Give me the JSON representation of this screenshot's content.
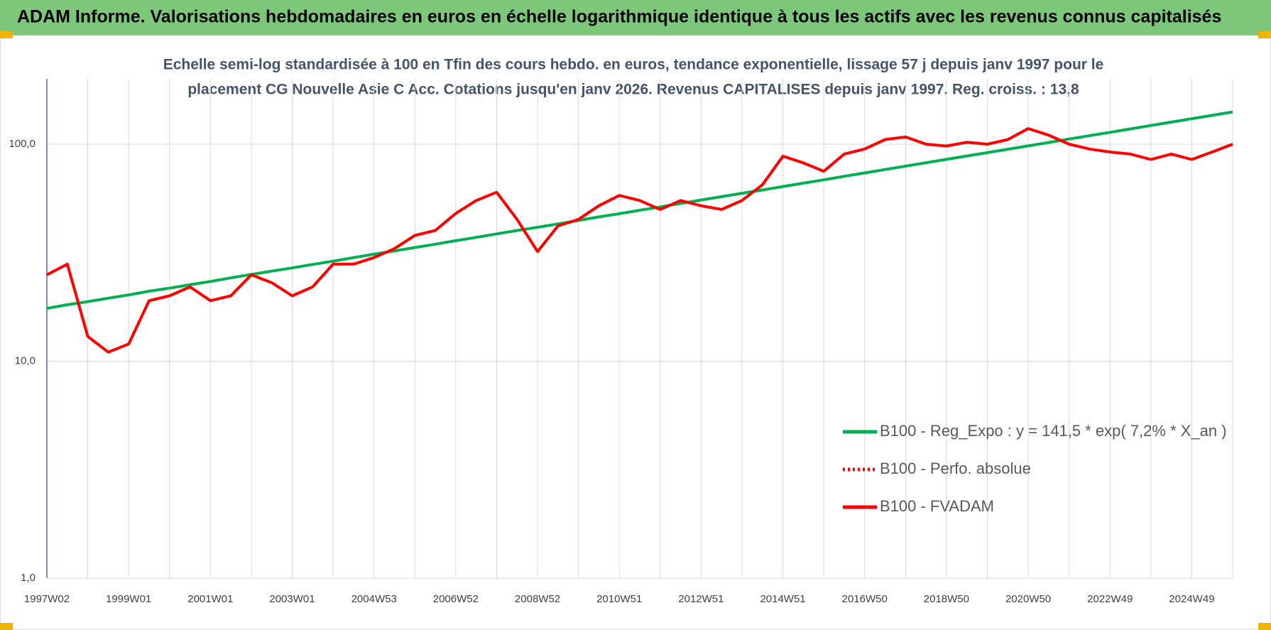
{
  "chart_data": {
    "type": "line",
    "title": "ADAM Informe. Valorisations hebdomadaires en euros en échelle logarithmique identique à tous les actifs avec les revenus connus capitalisés",
    "subtitle": [
      "Echelle semi-log standardisée à 100 en Tfin des cours hebdo. en euros, tendance exponentielle, lissage 57 j depuis janv 1997 pour le",
      "placement CG Nouvelle Asie C Acc. Cotations jusqu'en janv 2026. Revenus CAPITALISES depuis janv 1997. Reg. croiss. : 13,8"
    ],
    "categories": [
      "1997W02",
      null,
      null,
      null,
      "1999W01",
      null,
      null,
      null,
      "2001W01",
      null,
      null,
      null,
      "2003W01",
      null,
      null,
      null,
      "2004W53",
      null,
      null,
      null,
      "2006W52",
      null,
      null,
      null,
      "2008W52",
      null,
      null,
      null,
      "2010W51",
      null,
      null,
      null,
      "2012W51",
      null,
      null,
      null,
      "2014W51",
      null,
      null,
      null,
      "2016W50",
      null,
      null,
      null,
      "2018W50",
      null,
      null,
      null,
      "2020W50",
      null,
      null,
      null,
      "2022W49",
      null,
      null,
      null,
      "2024W49",
      null,
      null
    ],
    "series": [
      {
        "name": "B100 - Reg_Expo : y = 141,5 * exp( 7,2% *  X_an )",
        "color": "#00b050",
        "style": "solid",
        "values": [
          17.5,
          18.2,
          18.8,
          19.5,
          20.2,
          21.0,
          21.7,
          22.5,
          23.3,
          24.2,
          25.1,
          26.0,
          26.9,
          27.9,
          28.9,
          30.0,
          31.1,
          32.2,
          33.4,
          34.6,
          35.9,
          37.2,
          38.6,
          40.0,
          41.4,
          42.9,
          44.5,
          46.2,
          47.8,
          49.6,
          51.4,
          53.3,
          55.3,
          57.3,
          59.4,
          61.5,
          63.8,
          66.1,
          68.5,
          71.1,
          73.7,
          76.4,
          79.2,
          82.1,
          85.1,
          88.2,
          91.4,
          94.8,
          98.2,
          101.8,
          105.6,
          109.4,
          113.4,
          117.6,
          121.9,
          126.4,
          131.0,
          135.8,
          140.8
        ]
      },
      {
        "name": "B100 - Perfo. absolue",
        "color": "#ff0000",
        "style": "dotted",
        "values": [
          25,
          28,
          13,
          11,
          12,
          19,
          20,
          22,
          19,
          20,
          25,
          23,
          20,
          22,
          28,
          28,
          30,
          33,
          38,
          40,
          48,
          55,
          60,
          45,
          32,
          42,
          45,
          52,
          58,
          55,
          50,
          55,
          52,
          50,
          55,
          65,
          88,
          82,
          75,
          90,
          95,
          105,
          108,
          100,
          98,
          102,
          100,
          105,
          118,
          110,
          100,
          95,
          92,
          90,
          85,
          90,
          85,
          92,
          100
        ]
      },
      {
        "name": "B100 - FVADAM",
        "color": "#ff0000",
        "style": "solid",
        "values": [
          25,
          28,
          13,
          11,
          12,
          19,
          20,
          22,
          19,
          20,
          25,
          23,
          20,
          22,
          28,
          28,
          30,
          33,
          38,
          40,
          48,
          55,
          60,
          45,
          32,
          42,
          45,
          52,
          58,
          55,
          50,
          55,
          52,
          50,
          55,
          65,
          88,
          82,
          75,
          90,
          95,
          105,
          108,
          100,
          98,
          102,
          100,
          105,
          118,
          110,
          100,
          95,
          92,
          90,
          85,
          90,
          85,
          92,
          100
        ]
      }
    ],
    "log_scale": true,
    "ylim": [
      1,
      200
    ],
    "yticks": [
      {
        "value": 1,
        "label": "1,0"
      },
      {
        "value": 10,
        "label": "10,0"
      },
      {
        "value": 100,
        "label": "100,0"
      }
    ],
    "grid": true,
    "legend": "lower-right"
  }
}
